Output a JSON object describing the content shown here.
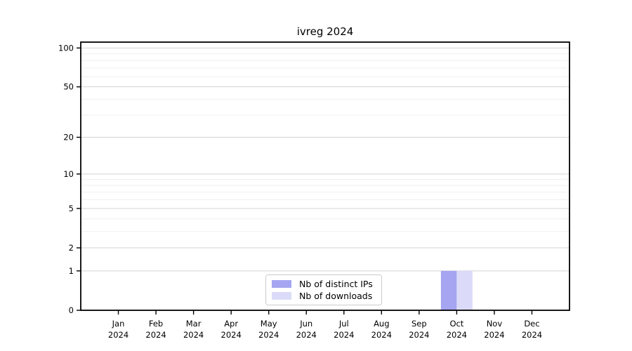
{
  "chart_data": {
    "type": "bar",
    "title": "ivreg 2024",
    "x_axis": {
      "categories": [
        {
          "month": "Jan",
          "year": "2024"
        },
        {
          "month": "Feb",
          "year": "2024"
        },
        {
          "month": "Mar",
          "year": "2024"
        },
        {
          "month": "Apr",
          "year": "2024"
        },
        {
          "month": "May",
          "year": "2024"
        },
        {
          "month": "Jun",
          "year": "2024"
        },
        {
          "month": "Jul",
          "year": "2024"
        },
        {
          "month": "Aug",
          "year": "2024"
        },
        {
          "month": "Sep",
          "year": "2024"
        },
        {
          "month": "Oct",
          "year": "2024"
        },
        {
          "month": "Nov",
          "year": "2024"
        },
        {
          "month": "Dec",
          "year": "2024"
        }
      ]
    },
    "y_axis": {
      "scale": "log10(1+x)",
      "ticks": [
        0,
        1,
        2,
        5,
        10,
        20,
        50,
        100
      ],
      "minor_gridlines": [
        3,
        4,
        6,
        7,
        8,
        9,
        30,
        40,
        60,
        70,
        80,
        90
      ],
      "ylim": [
        0,
        111
      ],
      "grid": "horizontal-only"
    },
    "series": [
      {
        "name": "Nb of distinct IPs",
        "color": "#a5a5f2",
        "values": [
          0,
          0,
          0,
          0,
          0,
          0,
          0,
          0,
          0,
          1,
          0,
          0
        ]
      },
      {
        "name": "Nb of downloads",
        "color": "#dbdbf9",
        "values": [
          0,
          0,
          0,
          0,
          0,
          0,
          0,
          0,
          0,
          1,
          0,
          0
        ]
      }
    ],
    "legend": {
      "position": "bottom-center"
    },
    "colors": {
      "major_grid": "#d3d3d3",
      "minor_grid": "#efefef",
      "axis": "#000000",
      "background": "#ffffff"
    }
  }
}
